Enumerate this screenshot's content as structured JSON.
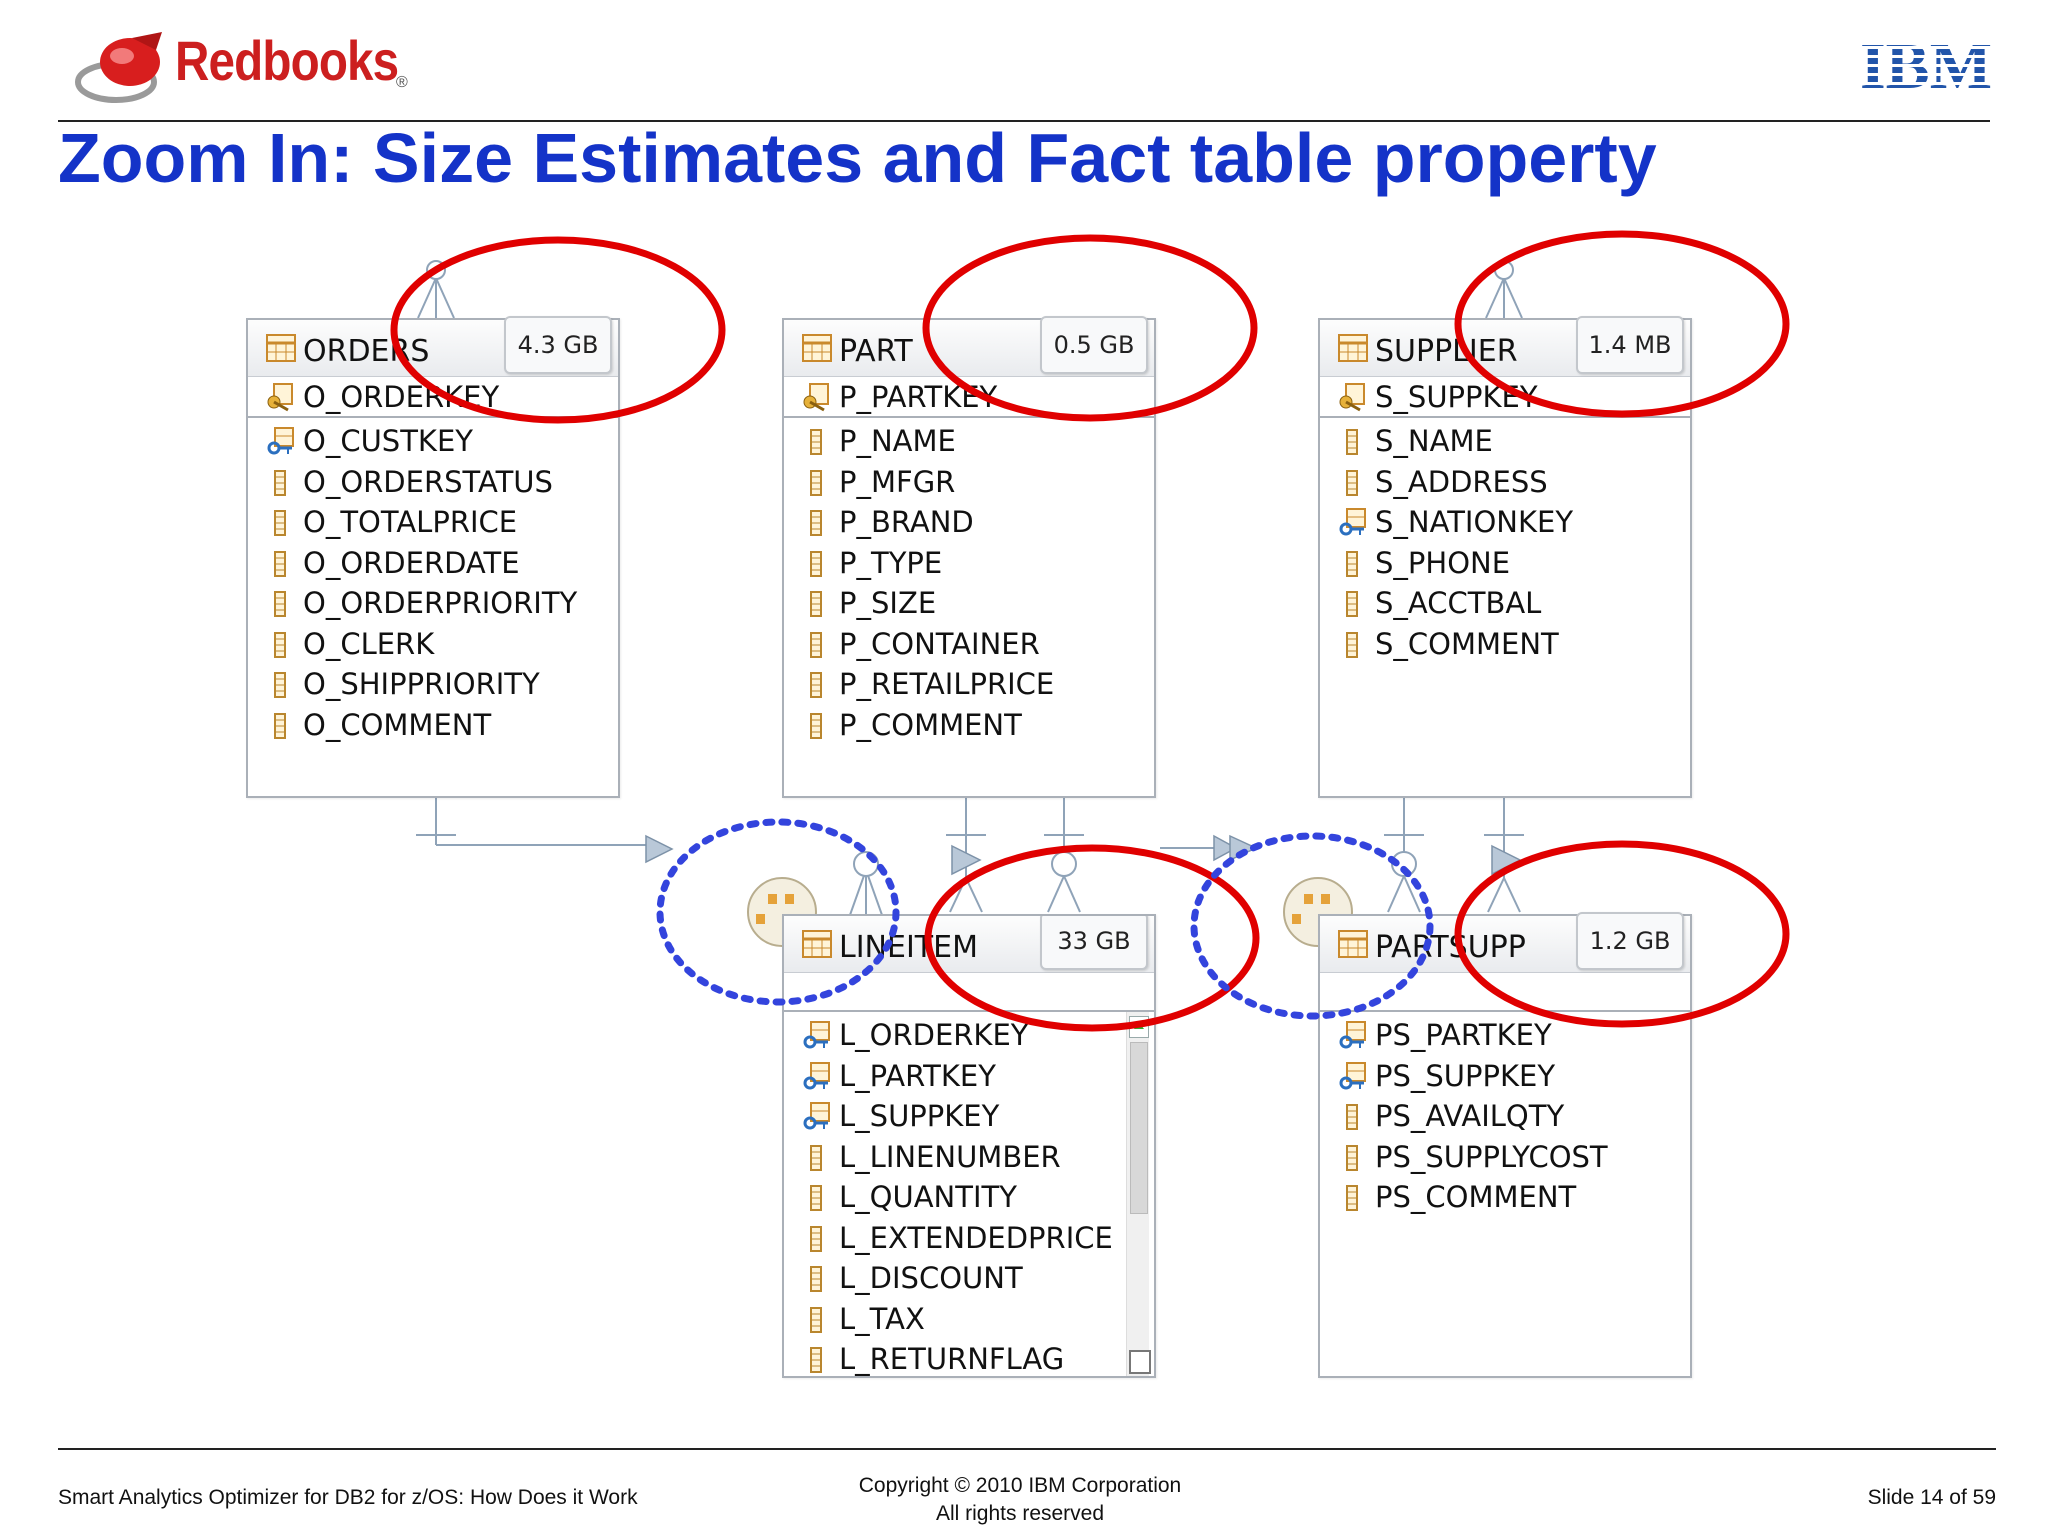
{
  "brand": {
    "logo_text": "Redbooks",
    "logo_mark": "®",
    "company_logo": "IBM"
  },
  "slide": {
    "title": "Zoom In: Size Estimates and Fact table property",
    "footer_left": "Smart Analytics Optimizer for DB2 for z/OS: How Does it Work",
    "footer_copyright": "Copyright © 2010 IBM Corporation",
    "footer_rights": "All rights reserved",
    "slide_number": "Slide 14 of 59"
  },
  "tables": {
    "orders": {
      "name": "ORDERS",
      "size": "4.3 GB",
      "key": "O_ORDERKEY",
      "columns": [
        "O_CUSTKEY",
        "O_ORDERSTATUS",
        "O_TOTALPRICE",
        "O_ORDERDATE",
        "O_ORDERPRIORITY",
        "O_CLERK",
        "O_SHIPPRIORITY",
        "O_COMMENT"
      ]
    },
    "part": {
      "name": "PART",
      "size": "0.5 GB",
      "key": "P_PARTKEY",
      "columns": [
        "P_NAME",
        "P_MFGR",
        "P_BRAND",
        "P_TYPE",
        "P_SIZE",
        "P_CONTAINER",
        "P_RETAILPRICE",
        "P_COMMENT"
      ]
    },
    "supplier": {
      "name": "SUPPLIER",
      "size": "1.4 MB",
      "key": "S_SUPPKEY",
      "columns": [
        "S_NAME",
        "S_ADDRESS",
        "S_NATIONKEY",
        "S_PHONE",
        "S_ACCTBAL",
        "S_COMMENT"
      ]
    },
    "lineitem": {
      "name": "LINEITEM",
      "size": "33 GB",
      "columns": [
        "L_ORDERKEY",
        "L_PARTKEY",
        "L_SUPPKEY",
        "L_LINENUMBER",
        "L_QUANTITY",
        "L_EXTENDEDPRICE",
        "L_DISCOUNT",
        "L_TAX",
        "L_RETURNFLAG"
      ]
    },
    "partsupp": {
      "name": "PARTSUPP",
      "size": "1.2 GB",
      "columns": [
        "PS_PARTKEY",
        "PS_SUPPKEY",
        "PS_AVAILQTY",
        "PS_SUPPLYCOST",
        "PS_COMMENT"
      ]
    }
  },
  "colors": {
    "title": "#1433c8",
    "highlight_red": "#e00000",
    "highlight_blue": "#3344dd",
    "logo_red": "#cc1f1f",
    "ibm_blue": "#2255aa"
  }
}
